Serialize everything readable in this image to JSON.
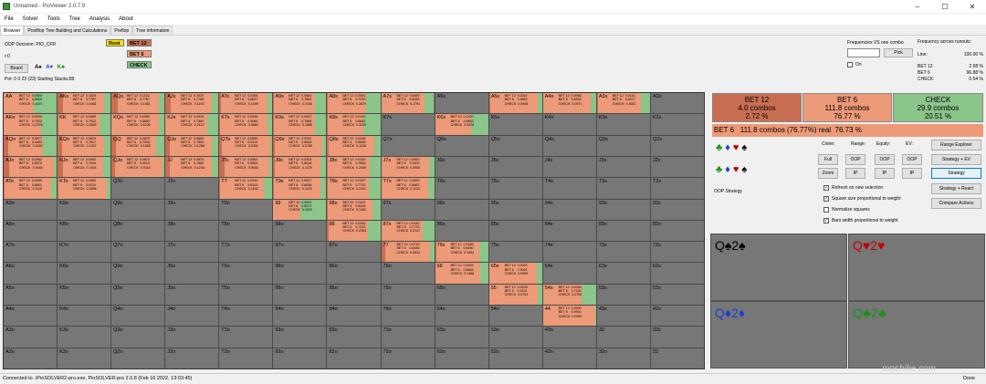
{
  "window": {
    "title": "Unnamed - PioViewer 2.0.7.9",
    "controls": [
      "–",
      "☐",
      "✕"
    ]
  },
  "menu": [
    "File",
    "Solver",
    "Tools",
    "Tree",
    "Analysis",
    "About"
  ],
  "tabs": [
    "Browser",
    "Postflop Tree Building and Calculations",
    "Preflop",
    "Tree information"
  ],
  "info": {
    "decision": "OOP Decision:  PIO_CFR",
    "r": "r:0",
    "board_btn": "Board",
    "board_suits": [
      "A♠",
      "A♥",
      "K♣"
    ],
    "pot": "Pot: 0 0 23 (23) Starting Stacks:89"
  },
  "tree": {
    "root": "Root",
    "nodes": [
      "BET 12",
      "BET 6",
      "CHECK"
    ]
  },
  "freq": {
    "label": "Frequencies VS one combo",
    "pick": "Pick",
    "on": "On"
  },
  "runouts": {
    "title": "Frequency across runouts:",
    "line_label": "Line:",
    "line_val": "100.00 %",
    "rows": [
      [
        "BET 12",
        "2.58 %"
      ],
      [
        "BET 6",
        "96.88 %"
      ],
      [
        "CHECK",
        "0.54 %"
      ]
    ]
  },
  "colors": {
    "bet12": "#c96e52",
    "bet6": "#ec9a78",
    "check": "#8bc58a",
    "empty": "#777777"
  },
  "grid_rows": [
    [
      "AA",
      "AKs",
      "AQs",
      "AJs",
      "ATs",
      "A9s",
      "A8s",
      "A7s",
      "A6s",
      "A5s",
      "A4s",
      "A3s",
      "A2s"
    ],
    [
      "AKo",
      "KK",
      "KQs",
      "KJs",
      "KTs",
      "K9s",
      "K8s",
      "K7s",
      "K6s",
      "K5s",
      "K4s",
      "K3s",
      "K2s"
    ],
    [
      "AQo",
      "KQo",
      "QQ",
      "QJs",
      "QTs",
      "Q9s",
      "Q8s",
      "Q7s",
      "Q6s",
      "Q5s",
      "Q4s",
      "Q3s",
      "Q2s"
    ],
    [
      "AJo",
      "KJo",
      "QJo",
      "JJ",
      "JTs",
      "J9s",
      "J8s",
      "J7s",
      "J6s",
      "J5s",
      "J4s",
      "J3s",
      "J2s"
    ],
    [
      "ATo",
      "KTo",
      "QTo",
      "JTo",
      "TT",
      "T9s",
      "T8s",
      "T7s",
      "T6s",
      "T5s",
      "T4s",
      "T3s",
      "T2s"
    ],
    [
      "A9o",
      "K9o",
      "Q9o",
      "J9o",
      "T9o",
      "99",
      "98s",
      "97s",
      "96s",
      "95s",
      "94s",
      "93s",
      "92s"
    ],
    [
      "A8o",
      "K8o",
      "Q8o",
      "J8o",
      "T8o",
      "98o",
      "88",
      "87s",
      "86s",
      "85s",
      "84s",
      "83s",
      "82s"
    ],
    [
      "A7o",
      "K7o",
      "Q7o",
      "J7o",
      "T7o",
      "97o",
      "87o",
      "77",
      "76s",
      "75s",
      "74s",
      "73s",
      "72s"
    ],
    [
      "A6o",
      "K6o",
      "Q6o",
      "J6o",
      "T6o",
      "96o",
      "86o",
      "76o",
      "66",
      "65s",
      "64s",
      "63s",
      "62s"
    ],
    [
      "A5o",
      "K5o",
      "Q5o",
      "J5o",
      "T5o",
      "95o",
      "85o",
      "75o",
      "65o",
      "55",
      "54s",
      "53s",
      "52s"
    ],
    [
      "A4o",
      "K4o",
      "Q4o",
      "J4o",
      "T4o",
      "94o",
      "84o",
      "74o",
      "64o",
      "54o",
      "44",
      "43s",
      "42s"
    ],
    [
      "A3o",
      "K3o",
      "Q3o",
      "J3o",
      "T3o",
      "93o",
      "83o",
      "73o",
      "63o",
      "53o",
      "43o",
      "33",
      "32s"
    ],
    [
      "A2o",
      "K2o",
      "Q2o",
      "J2o",
      "T2o",
      "92o",
      "82o",
      "72o",
      "62o",
      "52o",
      "42o",
      "32o",
      "22"
    ]
  ],
  "strategy": {
    "AA": [
      0,
      0.5629,
      0.4371
    ],
    "AKs": [
      0.1029,
      0.7787,
      0.1081
    ],
    "AQs": [
      0.1132,
      0.7787,
      0.1081
    ],
    "AJs": [
      0.102,
      0.7788,
      0.1192
    ],
    "ATs": [
      0.0355,
      0.8637,
      0.1009
    ],
    "A9s": [
      0.0061,
      0.7809,
      0.213
    ],
    "A8s": [
      0.0051,
      0.727,
      0.2679
    ],
    "A7s": [
      0,
      0.8189,
      0.1791
    ],
    "A6s": [
      0,
      0,
      0
    ],
    "A5s": [
      0.0241,
      0.8852,
      0.0908
    ],
    "A4s": [
      0.0085,
      0.8934,
      0.0971
    ],
    "A3s": [
      0.0141,
      0.8217,
      0.1642
    ],
    "AKo": [
      0,
      0.7022,
      0.2978
    ],
    "KK": [
      0.0089,
      0.7922,
      0.2089
    ],
    "KQs": [
      0.005,
      0.8844,
      0.1106
    ],
    "KJs": [
      0.0019,
      0.7869,
      0.2112
    ],
    "KTs": [
      0.0045,
      0.9085,
      0.0869
    ],
    "K9s": [
      0.0047,
      0.7868,
      0.2085
    ],
    "K8s": [
      0.0129,
      0.6662,
      0.3209
    ],
    "K6s": [
      0.012,
      0.6652,
      0.3228
    ],
    "K5s": [
      0,
      0,
      0
    ],
    "K4s": [
      0,
      0,
      0
    ],
    "AQo": [
      0.0877,
      0.6493,
      0.263
    ],
    "KQo": [
      0.0876,
      0.7817,
      0.1307
    ],
    "QQ": [
      0.0879,
      0.7516,
      0.1605
    ],
    "QJs": [
      0.0853,
      0.7859,
      0.1288
    ],
    "QTs": [
      0.053,
      0.9119,
      0.0351
    ],
    "Q9s": [
      0.0292,
      0.8928,
      0.078
    ],
    "Q8s": [
      0.0236,
      0.8608,
      0.1156
    ],
    "AJo": [
      0.0982,
      0.8573,
      0.0445
    ],
    "KJo": [
      0.0952,
      0.7644,
      0.1404
    ],
    "QJo": [
      0.067,
      0.9014,
      0.0316
    ],
    "JJ": [
      0.087,
      0.7882,
      0.1248
    ],
    "JTs": [
      0.0902,
      0.8554,
      0.0544
    ],
    "J9s": [
      0.0303,
      0.8618,
      0.1079
    ],
    "J8s": [
      0.0125,
      0.7826,
      0.2049
    ],
    "J7s": [
      0,
      0.91,
      0.09
    ],
    "ATo": [
      0.0089,
      0.8801,
      0.111
    ],
    "KTo": [
      0.0092,
      0.921,
      0.0698
    ],
    "TT": [
      0.0044,
      0.8314,
      0.1642
    ],
    "T9s": [
      0.0037,
      0.8838,
      0.1125
    ],
    "T8s": [
      0.0157,
      0.7742,
      0.2101
    ],
    "T7s": [
      0,
      0.8867,
      0.1133
    ],
    "99": [
      0,
      0.5071,
      0.4929
    ],
    "98s": [
      0.0101,
      0.8418,
      0.1481
    ],
    "88": [
      0.0234,
      0.7413,
      0.2353
    ],
    "87s": [
      0.014,
      0.7713,
      0.2147
    ],
    "77": [
      0.071,
      0.8448,
      0.0842
    ],
    "76s": [
      0.0166,
      0.818,
      0.1654
    ],
    "66": [
      0.0029,
      0.8483,
      0.1488
    ],
    "65s": [
      0,
      0.9001,
      0.0999
    ],
    "55": [
      0.0105,
      0.9141,
      0.0754
    ],
    "54s": [
      0.0096,
      0.7154,
      0.275
    ],
    "44": [
      0,
      0.9901,
      0.0099
    ]
  },
  "right": {
    "boxes": [
      {
        "title": "BET 12",
        "combos": "4.0 combos",
        "pct": "2.72 %"
      },
      {
        "title": "BET 6",
        "combos": "111.8 combos",
        "pct": "76.77 %"
      },
      {
        "title": "CHECK",
        "combos": "29.9 combos",
        "pct": "20.51 %"
      }
    ],
    "summary": "BET 6   111.8 combos (76.77%) real  76.73 %",
    "headers": [
      "Clone:",
      "Range:",
      "Equity:",
      "EV:"
    ],
    "buttons": {
      "full": "Full",
      "zoom": "Zoom",
      "oop": "OOP",
      "ip": "IP",
      "range_explorer": "Range Explorer",
      "strategy_ev": "Strategy + EV",
      "strategy": "Strategy",
      "strategy_react": "Strategy + React",
      "compare": "Compare Actions"
    },
    "oop_strategy": "OOP Strategy",
    "checks": [
      {
        "label": "Refresh on new selection",
        "on": true
      },
      {
        "label": "Square size proportional to weight",
        "on": true
      },
      {
        "label": "Normalize squares",
        "on": false
      },
      {
        "label": "Bars width proportional to weight",
        "on": true
      }
    ],
    "hands": [
      "Q♠2♠",
      "Q♥2♥",
      "Q♦2♦",
      "Q♣2♣"
    ],
    "hand_colors": [
      "#000000",
      "#c00000",
      "#1a3fd0",
      "#1a8f1a"
    ]
  },
  "status": {
    "left": "Connected to .\\PioSOLVER2-pro.exe, PioSOLVER-pro 2.0.8 (Feb 16 2022, 13:03:45)",
    "right": "Done",
    "watermark": "moshike.com"
  }
}
